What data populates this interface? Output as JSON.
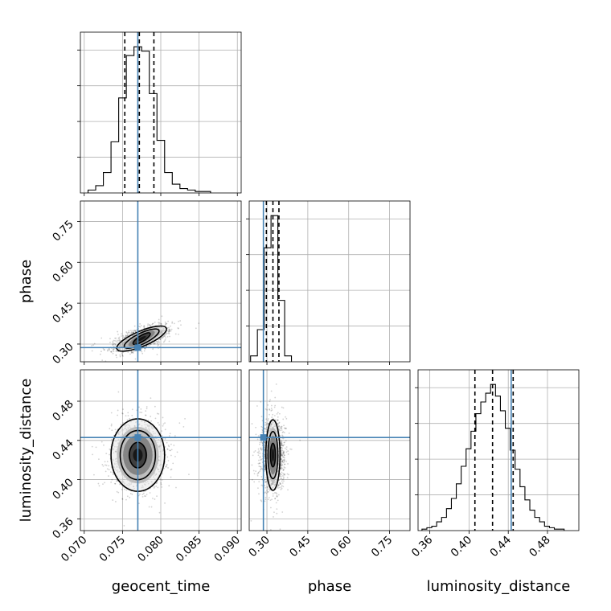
{
  "chart_data": {
    "type": "corner",
    "parameters": [
      {
        "name": "geocent_time",
        "label": "geocent_time",
        "range": [
          0.0695,
          0.0905
        ],
        "ticks": [
          0.07,
          0.075,
          0.08,
          0.085,
          0.09
        ],
        "tick_labels": [
          "0.070",
          "0.075",
          "0.080",
          "0.085",
          "0.090"
        ],
        "truth": 0.077,
        "quantiles": [
          0.0753,
          0.0772,
          0.0791
        ],
        "histogram": {
          "edges": [
            0.0705,
            0.0715,
            0.0725,
            0.0735,
            0.0745,
            0.0755,
            0.0765,
            0.0775,
            0.0785,
            0.0795,
            0.0805,
            0.0815,
            0.0825,
            0.0835,
            0.0845,
            0.0855,
            0.0865
          ],
          "counts": [
            2,
            5,
            14,
            35,
            65,
            94,
            100,
            97,
            68,
            36,
            14,
            6,
            3,
            2,
            1,
            1
          ]
        }
      },
      {
        "name": "phase",
        "label": "phase",
        "range": [
          0.235,
          0.825
        ],
        "ticks": [
          0.3,
          0.45,
          0.6,
          0.75
        ],
        "tick_labels": [
          "0.30",
          "0.45",
          "0.60",
          "0.75"
        ],
        "truth": 0.287,
        "quantiles": [
          0.298,
          0.322,
          0.344
        ],
        "histogram": {
          "edges": [
            0.24,
            0.265,
            0.29,
            0.315,
            0.34,
            0.365,
            0.39
          ],
          "counts": [
            4,
            22,
            78,
            100,
            42,
            4
          ]
        }
      },
      {
        "name": "luminosity_distance",
        "label": "luminosity_distance",
        "range": [
          0.348,
          0.512
        ],
        "ticks": [
          0.36,
          0.4,
          0.44,
          0.48
        ],
        "tick_labels": [
          "0.36",
          "0.40",
          "0.44",
          "0.48"
        ],
        "truth": 0.443,
        "quantiles": [
          0.406,
          0.424,
          0.445
        ],
        "histogram": {
          "edges": [
            0.352,
            0.357,
            0.362,
            0.367,
            0.372,
            0.377,
            0.382,
            0.387,
            0.392,
            0.397,
            0.402,
            0.407,
            0.412,
            0.417,
            0.422,
            0.427,
            0.432,
            0.437,
            0.442,
            0.447,
            0.452,
            0.457,
            0.462,
            0.467,
            0.472,
            0.477,
            0.482,
            0.487,
            0.492,
            0.497
          ],
          "counts": [
            1,
            2,
            3,
            6,
            9,
            15,
            22,
            32,
            44,
            56,
            68,
            80,
            88,
            94,
            100,
            92,
            82,
            70,
            55,
            42,
            30,
            21,
            14,
            9,
            6,
            3,
            2,
            1,
            1
          ]
        }
      }
    ],
    "joint": [
      {
        "x": "geocent_time",
        "y": "phase",
        "center": [
          0.0775,
          0.32
        ],
        "spread": [
          0.0016,
          0.022
        ],
        "corr": 0.6,
        "contours": [
          {
            "rx": 0.0013,
            "ry": 0.011,
            "angle": 0.55
          },
          {
            "rx": 0.0025,
            "ry": 0.02,
            "angle": 0.45
          },
          {
            "rx": 0.0035,
            "ry": 0.028,
            "angle": 0.4
          }
        ]
      },
      {
        "x": "geocent_time",
        "y": "luminosity_distance",
        "center": [
          0.077,
          0.425
        ],
        "spread": [
          0.0017,
          0.017
        ],
        "corr": 0.0,
        "contours": [
          {
            "rx": 0.0011,
            "ry": 0.013,
            "angle": 0
          },
          {
            "rx": 0.0023,
            "ry": 0.025,
            "angle": 0
          },
          {
            "rx": 0.0035,
            "ry": 0.037,
            "angle": 0
          }
        ]
      },
      {
        "x": "phase",
        "y": "luminosity_distance",
        "center": [
          0.322,
          0.425
        ],
        "spread": [
          0.021,
          0.017
        ],
        "corr": 0.0,
        "contours": [
          {
            "rx": 0.009,
            "ry": 0.012,
            "angle": 0
          },
          {
            "rx": 0.018,
            "ry": 0.024,
            "angle": 0
          },
          {
            "rx": 0.026,
            "ry": 0.036,
            "angle": 0
          }
        ]
      }
    ],
    "truth_color": "#4682b4",
    "contour_color": "#000000",
    "grid": true
  }
}
